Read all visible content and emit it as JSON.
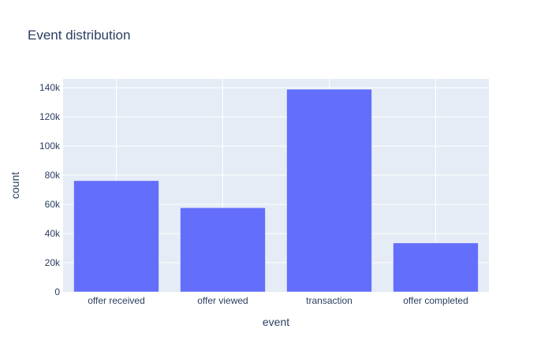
{
  "chart_data": {
    "type": "bar",
    "title": "Event distribution",
    "xlabel": "event",
    "ylabel": "count",
    "categories": [
      "offer received",
      "offer viewed",
      "transaction",
      "offer completed"
    ],
    "values": [
      76277,
      57725,
      138953,
      33579
    ],
    "ylim": [
      0,
      146000
    ],
    "yticks": [
      0,
      20000,
      40000,
      60000,
      80000,
      100000,
      120000,
      140000
    ],
    "ytick_labels": [
      "0",
      "20k",
      "40k",
      "60k",
      "80k",
      "100k",
      "120k",
      "140k"
    ],
    "grid": true,
    "colors": {
      "bar": "#636efa",
      "plot_bg": "#e5ecf6",
      "grid": "#ffffff",
      "text": "#2a3f5f"
    }
  }
}
